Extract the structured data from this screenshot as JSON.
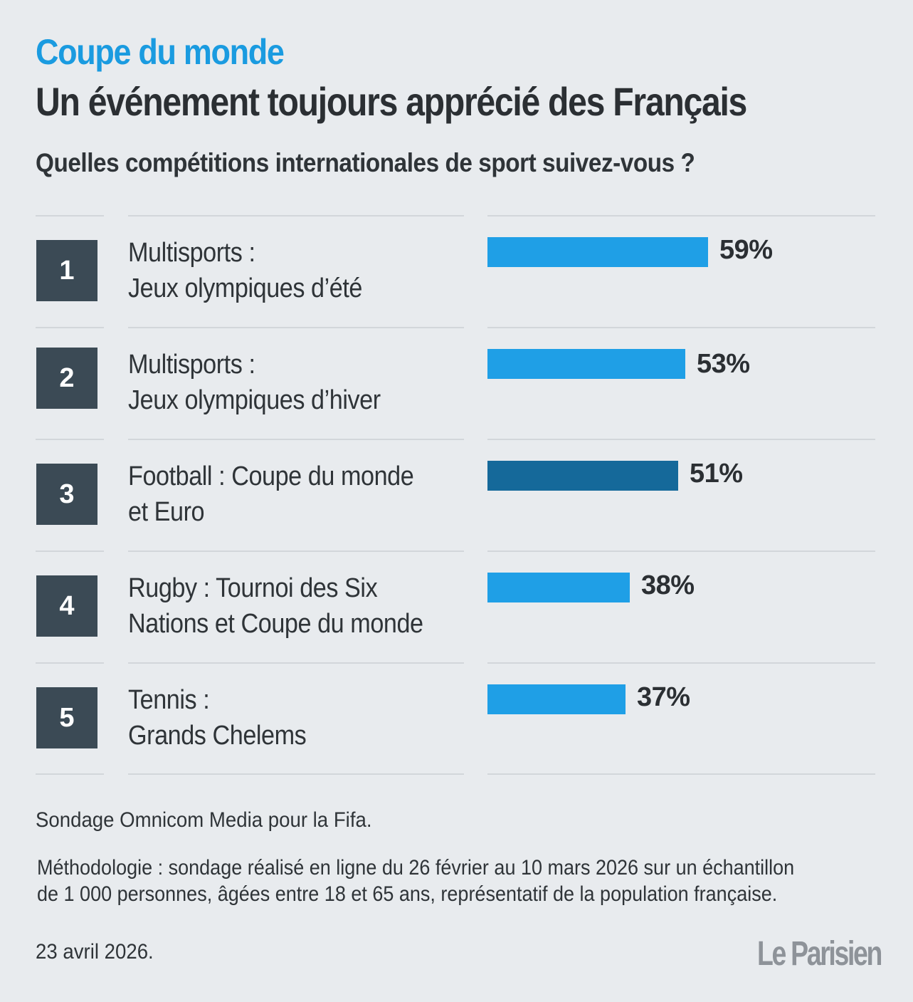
{
  "header": {
    "kicker": "Coupe du monde",
    "title": "Un événement toujours apprécié des Français",
    "question": "Quelles compétitions internationales de sport suivez-vous ?"
  },
  "chart_data": {
    "type": "bar",
    "orientation": "horizontal",
    "title": "Quelles compétitions internationales de sport suivez-vous ?",
    "categories": [
      "Multisports : Jeux olympiques d’été",
      "Multisports : Jeux olympiques d’hiver",
      "Football : Coupe du monde et Euro",
      "Rugby : Tournoi des Six Nations et Coupe du monde",
      "Tennis : Grands Chelems"
    ],
    "values": [
      59,
      53,
      51,
      38,
      37
    ],
    "value_labels": [
      "59%",
      "53%",
      "51%",
      "38%",
      "37%"
    ],
    "ranks": [
      "1",
      "2",
      "3",
      "4",
      "5"
    ],
    "label_lines": [
      [
        "Multisports :",
        "Jeux olympiques d’été"
      ],
      [
        "Multisports :",
        "Jeux olympiques d’hiver"
      ],
      [
        "Football : Coupe du monde",
        "et Euro"
      ],
      [
        "Rugby : Tournoi des Six",
        "Nations et Coupe du monde"
      ],
      [
        "Tennis :",
        "Grands Chelems"
      ]
    ],
    "highlight_index": 2,
    "colors": {
      "bar": "#1f9fe6",
      "highlight": "#15699a",
      "rank_box": "#3b4a55",
      "kicker": "#1a9be0",
      "background": "#e8ebee"
    },
    "unit": "%"
  },
  "footer": {
    "source": "Sondage Omnicom Media pour la Fifa.",
    "methodology": [
      "Méthodologie : sondage réalisé en ligne du 26 février au 10 mars 2026 sur un échantillon",
      "de 1 000 personnes, âgées entre 18 et 65 ans, représentatif de la population française."
    ],
    "date": "23 avril 2026.",
    "logo": "Le Parisien"
  }
}
